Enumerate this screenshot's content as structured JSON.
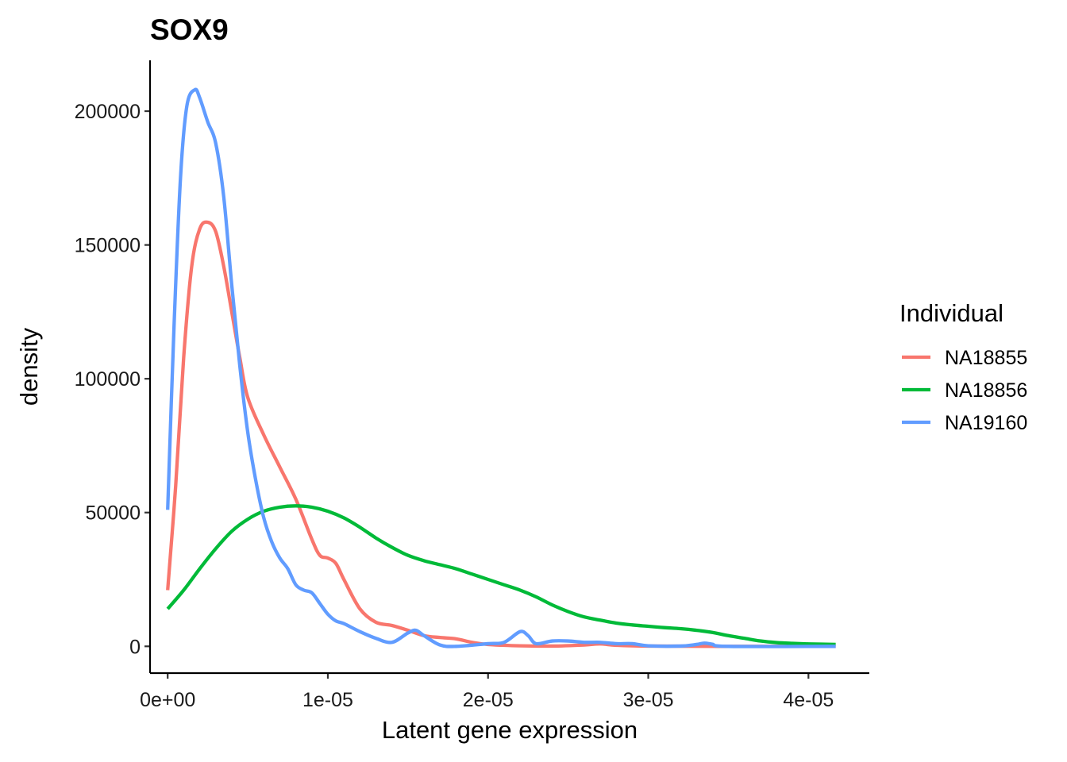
{
  "chart_data": {
    "type": "line",
    "title": "SOX9",
    "xlabel": "Latent gene expression",
    "ylabel": "density",
    "xlim": [
      -1.1e-06,
      4.38e-05
    ],
    "ylim": [
      -10000,
      219000
    ],
    "x_ticks": [
      0,
      1e-05,
      2e-05,
      3e-05,
      4e-05
    ],
    "x_tick_labels": [
      "0e+00",
      "1e-05",
      "2e-05",
      "3e-05",
      "4e-05"
    ],
    "y_ticks": [
      0,
      50000,
      100000,
      150000,
      200000
    ],
    "y_tick_labels": [
      "0",
      "50000",
      "100000",
      "150000",
      "200000"
    ],
    "grid": false,
    "legend": {
      "title": "Individual",
      "position": "right"
    },
    "series": [
      {
        "name": "NA18855",
        "color": "#F8766D",
        "points": [
          [
            0.0,
            21000
          ],
          [
            5e-07,
            60000
          ],
          [
            1e-06,
            108000
          ],
          [
            1.5e-06,
            142000
          ],
          [
            2e-06,
            156000
          ],
          [
            2.5e-06,
            158500
          ],
          [
            3e-06,
            155000
          ],
          [
            3.5e-06,
            142000
          ],
          [
            4e-06,
            125000
          ],
          [
            4.5e-06,
            108000
          ],
          [
            5e-06,
            93000
          ],
          [
            6e-06,
            79000
          ],
          [
            7e-06,
            67000
          ],
          [
            8e-06,
            55000
          ],
          [
            9e-06,
            40000
          ],
          [
            9.5e-06,
            34000
          ],
          [
            1e-05,
            33000
          ],
          [
            1.05e-05,
            31000
          ],
          [
            1.1e-05,
            25000
          ],
          [
            1.2e-05,
            14000
          ],
          [
            1.3e-05,
            9000
          ],
          [
            1.4e-05,
            7800
          ],
          [
            1.5e-05,
            6000
          ],
          [
            1.6e-05,
            4000
          ],
          [
            1.7e-05,
            3300
          ],
          [
            1.8e-05,
            2800
          ],
          [
            1.9e-05,
            1500
          ],
          [
            2e-05,
            700
          ],
          [
            2.2e-05,
            200
          ],
          [
            2.4e-05,
            100
          ],
          [
            2.6e-05,
            500
          ],
          [
            2.7e-05,
            900
          ],
          [
            2.8e-05,
            400
          ],
          [
            3e-05,
            100
          ],
          [
            3.5e-05,
            0
          ],
          [
            4.17e-05,
            0
          ]
        ]
      },
      {
        "name": "NA18856",
        "color": "#00BA38",
        "points": [
          [
            0.0,
            14000
          ],
          [
            1e-06,
            21000
          ],
          [
            2e-06,
            29000
          ],
          [
            3e-06,
            36500
          ],
          [
            4e-06,
            43000
          ],
          [
            5e-06,
            47500
          ],
          [
            6e-06,
            50500
          ],
          [
            7e-06,
            52000
          ],
          [
            8e-06,
            52500
          ],
          [
            9e-06,
            52000
          ],
          [
            1e-05,
            50500
          ],
          [
            1.1e-05,
            48000
          ],
          [
            1.2e-05,
            44500
          ],
          [
            1.3e-05,
            40500
          ],
          [
            1.4e-05,
            37000
          ],
          [
            1.5e-05,
            34000
          ],
          [
            1.6e-05,
            32000
          ],
          [
            1.7e-05,
            30500
          ],
          [
            1.8e-05,
            29000
          ],
          [
            1.9e-05,
            27000
          ],
          [
            2e-05,
            25000
          ],
          [
            2.1e-05,
            23000
          ],
          [
            2.2e-05,
            21000
          ],
          [
            2.3e-05,
            18500
          ],
          [
            2.4e-05,
            15500
          ],
          [
            2.5e-05,
            13000
          ],
          [
            2.6e-05,
            11000
          ],
          [
            2.7e-05,
            9800
          ],
          [
            2.8e-05,
            8700
          ],
          [
            2.9e-05,
            8000
          ],
          [
            3e-05,
            7500
          ],
          [
            3.1e-05,
            7000
          ],
          [
            3.2e-05,
            6600
          ],
          [
            3.3e-05,
            6000
          ],
          [
            3.4e-05,
            5200
          ],
          [
            3.5e-05,
            4000
          ],
          [
            3.6e-05,
            3000
          ],
          [
            3.7e-05,
            2000
          ],
          [
            3.8e-05,
            1400
          ],
          [
            3.9e-05,
            1100
          ],
          [
            4e-05,
            900
          ],
          [
            4.17e-05,
            700
          ]
        ]
      },
      {
        "name": "NA19160",
        "color": "#619CFF",
        "points": [
          [
            0.0,
            51000
          ],
          [
            4e-07,
            120000
          ],
          [
            8e-07,
            175000
          ],
          [
            1.2e-06,
            202000
          ],
          [
            1.7e-06,
            208000
          ],
          [
            2e-06,
            205000
          ],
          [
            2.5e-06,
            196000
          ],
          [
            3e-06,
            188000
          ],
          [
            3.5e-06,
            168000
          ],
          [
            4e-06,
            135000
          ],
          [
            4.5e-06,
            105000
          ],
          [
            5e-06,
            80000
          ],
          [
            5.5e-06,
            62000
          ],
          [
            6e-06,
            48000
          ],
          [
            6.5e-06,
            39000
          ],
          [
            7e-06,
            33000
          ],
          [
            7.5e-06,
            29000
          ],
          [
            8e-06,
            23000
          ],
          [
            8.5e-06,
            21000
          ],
          [
            9e-06,
            20000
          ],
          [
            9.5e-06,
            16000
          ],
          [
            1e-05,
            12000
          ],
          [
            1.05e-05,
            9500
          ],
          [
            1.1e-05,
            8500
          ],
          [
            1.2e-05,
            5500
          ],
          [
            1.3e-05,
            3000
          ],
          [
            1.4e-05,
            1500
          ],
          [
            1.5e-05,
            5000
          ],
          [
            1.55e-05,
            6000
          ],
          [
            1.6e-05,
            4000
          ],
          [
            1.7e-05,
            500
          ],
          [
            1.8e-05,
            0
          ],
          [
            2e-05,
            1000
          ],
          [
            2.1e-05,
            1500
          ],
          [
            2.2e-05,
            5500
          ],
          [
            2.25e-05,
            4000
          ],
          [
            2.3e-05,
            1000
          ],
          [
            2.4e-05,
            2000
          ],
          [
            2.5e-05,
            2000
          ],
          [
            2.6e-05,
            1500
          ],
          [
            2.7e-05,
            1500
          ],
          [
            2.8e-05,
            1000
          ],
          [
            2.9e-05,
            1000
          ],
          [
            3e-05,
            200
          ],
          [
            3.2e-05,
            100
          ],
          [
            3.3e-05,
            700
          ],
          [
            3.35e-05,
            1200
          ],
          [
            3.4e-05,
            800
          ],
          [
            3.5e-05,
            0
          ],
          [
            4.17e-05,
            0
          ]
        ]
      }
    ]
  }
}
